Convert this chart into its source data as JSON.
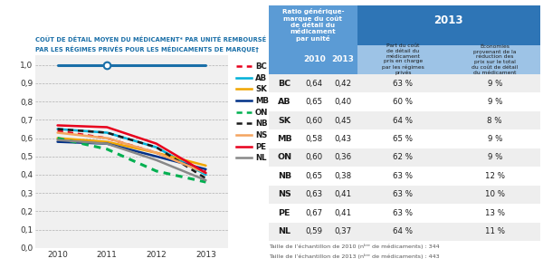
{
  "title_line1": "COÛT DE DÉTAIL MOYEN DU MÉDICAMENT* PAR UNITÉ REMBOURSÉ",
  "title_line2": "PAR LES RÉGIMES PRIVÉS POUR LES MÉDICAMENTS DE MARQUE†",
  "years": [
    2010,
    2011,
    2012,
    2013
  ],
  "brand_line": [
    1.0,
    1.0,
    1.0,
    1.0
  ],
  "series": [
    {
      "label": "BC",
      "color": "#e8001c",
      "linestyle": "dotted",
      "linewidth": 1.8,
      "values": [
        0.64,
        0.6,
        0.52,
        0.42
      ]
    },
    {
      "label": "AB",
      "color": "#00b0d8",
      "linestyle": "solid",
      "linewidth": 1.8,
      "values": [
        0.65,
        0.63,
        0.55,
        0.4
      ]
    },
    {
      "label": "SK",
      "color": "#f0a500",
      "linestyle": "solid",
      "linewidth": 1.8,
      "values": [
        0.6,
        0.58,
        0.52,
        0.45
      ]
    },
    {
      "label": "MB",
      "color": "#003087",
      "linestyle": "solid",
      "linewidth": 1.8,
      "values": [
        0.58,
        0.57,
        0.5,
        0.43
      ]
    },
    {
      "label": "ON",
      "color": "#00b050",
      "linestyle": "dotted",
      "linewidth": 2.2,
      "values": [
        0.6,
        0.54,
        0.42,
        0.36
      ]
    },
    {
      "label": "NB",
      "color": "#1a1a1a",
      "linestyle": "dotted",
      "linewidth": 1.8,
      "values": [
        0.65,
        0.63,
        0.55,
        0.38
      ]
    },
    {
      "label": "NS",
      "color": "#f4a460",
      "linestyle": "solid",
      "linewidth": 1.8,
      "values": [
        0.63,
        0.6,
        0.52,
        0.41
      ]
    },
    {
      "label": "PE",
      "color": "#e8001c",
      "linestyle": "solid",
      "linewidth": 1.8,
      "values": [
        0.67,
        0.66,
        0.57,
        0.41
      ]
    },
    {
      "label": "NL",
      "color": "#888888",
      "linestyle": "solid",
      "linewidth": 1.8,
      "values": [
        0.59,
        0.57,
        0.48,
        0.37
      ]
    }
  ],
  "brand_color": "#1a6fa8",
  "brand_linewidth": 2.2,
  "table_provinces": [
    "BC",
    "AB",
    "SK",
    "MB",
    "ON",
    "NB",
    "NS",
    "PE",
    "NL"
  ],
  "table_2010": [
    0.64,
    0.65,
    0.6,
    0.58,
    0.6,
    0.65,
    0.63,
    0.67,
    0.59
  ],
  "table_2013": [
    0.42,
    0.4,
    0.45,
    0.43,
    0.36,
    0.38,
    0.41,
    0.41,
    0.37
  ],
  "table_part": [
    "63 %",
    "60 %",
    "64 %",
    "65 %",
    "62 %",
    "63 %",
    "63 %",
    "63 %",
    "64 %"
  ],
  "table_eco": [
    "9 %",
    "9 %",
    "8 %",
    "9 %",
    "9 %",
    "12 %",
    "10 %",
    "13 %",
    "11 %"
  ],
  "footnote1": "Taille de l’échantillon de 2010 (nᵇʳᵉ de médicaments) : 344",
  "footnote2": "Taille de l’échantillon de 2013 (nᵇʳᵉ de médicaments) : 443",
  "c_blue1": "#2e75b6",
  "c_blue2": "#5b9bd5",
  "c_blue3": "#9dc3e6",
  "c_blue_light": "#bdd7ee",
  "axis_bg": "#f0f0f0"
}
